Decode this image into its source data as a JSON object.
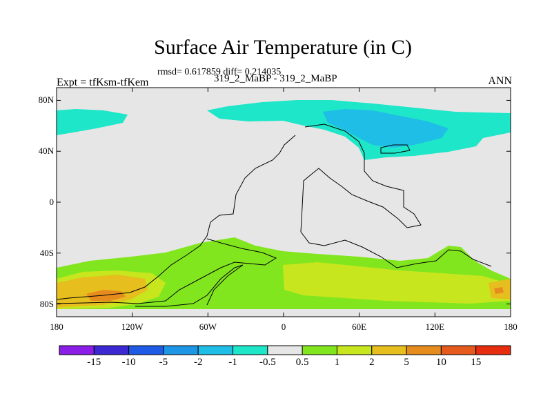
{
  "header": {
    "title": "Surface Air Temperature (in C)",
    "stats": "rmsd= 0.617859 diff= 0.214035",
    "left_label": "Expt = tfKsm-tfKem",
    "center_label": "319_2_MaBP - 319_2_MaBP",
    "right_label": "ANN"
  },
  "axes": {
    "lat_ticks": [
      "80N",
      "40N",
      "0",
      "40S",
      "80S"
    ],
    "lon_ticks": [
      "180",
      "120W",
      "60W",
      "0",
      "60E",
      "120E",
      "180"
    ]
  },
  "colorbar": {
    "labels": [
      "-15",
      "-10",
      "-5",
      "-2",
      "-1",
      "-0.5",
      "0.5",
      "1",
      "2",
      "5",
      "10",
      "15"
    ],
    "colors": [
      "#8a1ee6",
      "#3c28d2",
      "#1e5ae6",
      "#1e96e6",
      "#1ebee6",
      "#1ee6c8",
      "#e6e6e6",
      "#82e61e",
      "#c8e61e",
      "#e6be1e",
      "#e68c1e",
      "#e65a1e",
      "#e62d0f"
    ]
  },
  "map": {
    "lat_range": [
      -90,
      90
    ],
    "lon_range": [
      -180,
      180
    ],
    "background_color": "#e6e6e6",
    "regions": [
      {
        "name": "north-cold-west",
        "level": "-1"
      },
      {
        "name": "north-cold-band",
        "level": "-1"
      },
      {
        "name": "north-colder-core",
        "level": "-2"
      },
      {
        "name": "south-warm-band",
        "level": "0.5"
      },
      {
        "name": "south-warmer-band",
        "level": "1"
      },
      {
        "name": "south-warmest-west",
        "level": "2"
      },
      {
        "name": "south-hot-core",
        "level": "5"
      }
    ]
  }
}
